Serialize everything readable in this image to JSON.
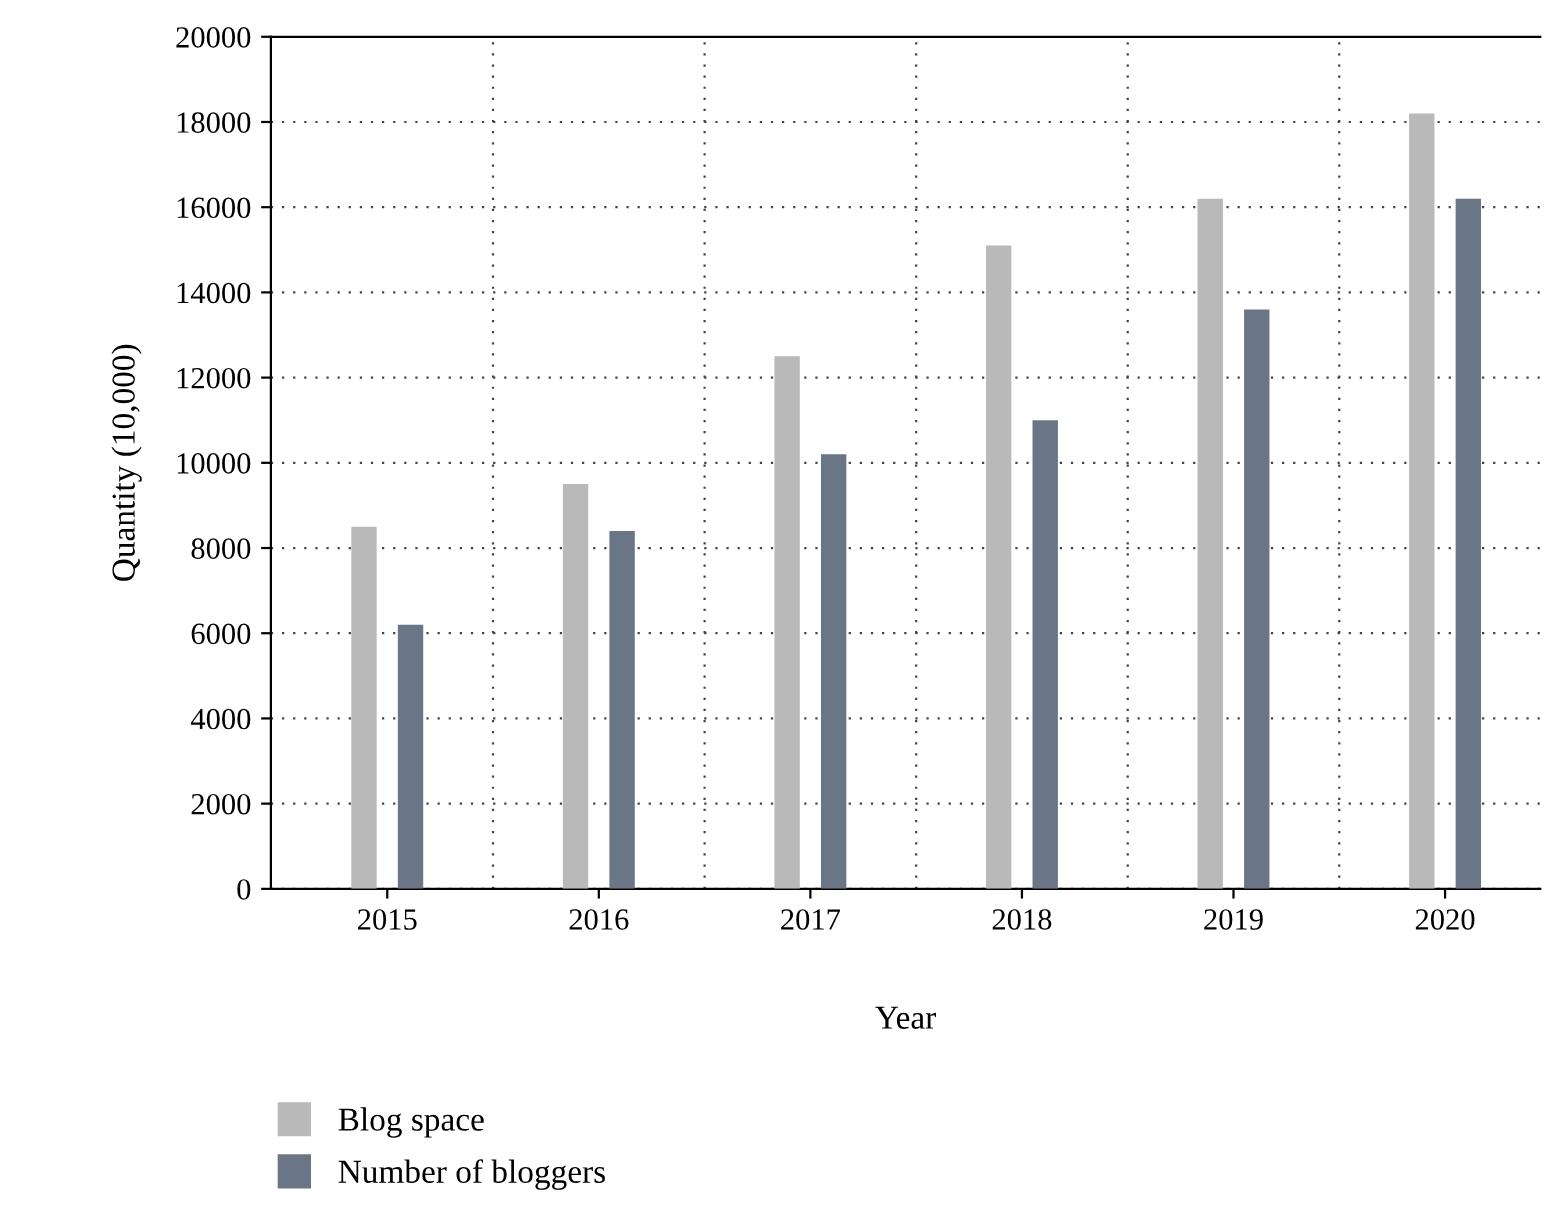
{
  "chart_data": {
    "type": "bar",
    "xlabel": "Year",
    "ylabel": "Quantity (10,000)",
    "categories": [
      "2015",
      "2016",
      "2017",
      "2018",
      "2019",
      "2020"
    ],
    "series": [
      {
        "name": "Blog space",
        "color": "#b9b9b9",
        "values": [
          8500,
          9500,
          12500,
          15100,
          16200,
          18200
        ]
      },
      {
        "name": "Number of bloggers",
        "color": "#6a7586",
        "values": [
          6200,
          8400,
          10200,
          11000,
          13600,
          16200
        ]
      }
    ],
    "ylim": [
      0,
      20000
    ],
    "yticks": [
      0,
      2000,
      4000,
      6000,
      8000,
      10000,
      12000,
      14000,
      16000,
      18000,
      20000
    ],
    "grid": true,
    "legend": "bottom left"
  }
}
